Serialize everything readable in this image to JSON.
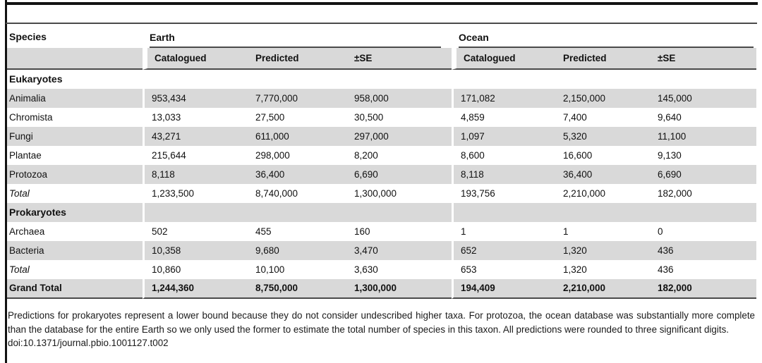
{
  "colors": {
    "shade": "#d9d9d9",
    "rule_dark": "#121212",
    "rule_mid": "#4a4a4a"
  },
  "table": {
    "species_header": "Species",
    "col_groups": [
      {
        "label": "Earth"
      },
      {
        "label": "Ocean"
      }
    ],
    "sub_headers": [
      "Catalogued",
      "Predicted",
      "±SE",
      "Catalogued",
      "Predicted",
      "±SE"
    ],
    "rows": [
      {
        "type": "section",
        "label": "Eukaryotes",
        "shaded": false,
        "values": [
          "",
          "",
          "",
          "",
          "",
          ""
        ]
      },
      {
        "type": "data",
        "label": "Animalia",
        "shaded": true,
        "values": [
          "953,434",
          "7,770,000",
          "958,000",
          "171,082",
          "2,150,000",
          "145,000"
        ]
      },
      {
        "type": "data",
        "label": "Chromista",
        "shaded": false,
        "values": [
          "13,033",
          "27,500",
          "30,500",
          "4,859",
          "7,400",
          "9,640"
        ]
      },
      {
        "type": "data",
        "label": "Fungi",
        "shaded": true,
        "values": [
          "43,271",
          "611,000",
          "297,000",
          "1,097",
          "5,320",
          "11,100"
        ]
      },
      {
        "type": "data",
        "label": "Plantae",
        "shaded": false,
        "values": [
          "215,644",
          "298,000",
          "8,200",
          "8,600",
          "16,600",
          "9,130"
        ]
      },
      {
        "type": "data",
        "label": "Protozoa",
        "shaded": true,
        "values": [
          "8,118",
          "36,400",
          "6,690",
          "8,118",
          "36,400",
          "6,690"
        ]
      },
      {
        "type": "total",
        "label": "Total",
        "shaded": false,
        "values": [
          "1,233,500",
          "8,740,000",
          "1,300,000",
          "193,756",
          "2,210,000",
          "182,000"
        ]
      },
      {
        "type": "section",
        "label": "Prokaryotes",
        "shaded": true,
        "values": [
          "",
          "",
          "",
          "",
          "",
          ""
        ]
      },
      {
        "type": "data",
        "label": "Archaea",
        "shaded": false,
        "values": [
          "502",
          "455",
          "160",
          "1",
          "1",
          "0"
        ]
      },
      {
        "type": "data",
        "label": "Bacteria",
        "shaded": true,
        "values": [
          "10,358",
          "9,680",
          "3,470",
          "652",
          "1,320",
          "436"
        ]
      },
      {
        "type": "total",
        "label": "Total",
        "shaded": false,
        "values": [
          "10,860",
          "10,100",
          "3,630",
          "653",
          "1,320",
          "436"
        ]
      },
      {
        "type": "grand",
        "label": "Grand Total",
        "shaded": true,
        "values": [
          "1,244,360",
          "8,750,000",
          "1,300,000",
          "194,409",
          "2,210,000",
          "182,000"
        ]
      }
    ]
  },
  "footnote": {
    "text": "Predictions for prokaryotes represent a lower bound because they do not consider undescribed higher taxa. For protozoa, the ocean database was substantially more complete than the database for the entire Earth so we only used the former to estimate the total number of species in this taxon. All predictions were rounded to three significant digits.",
    "doi": "doi:10.1371/journal.pbio.1001127.t002"
  }
}
